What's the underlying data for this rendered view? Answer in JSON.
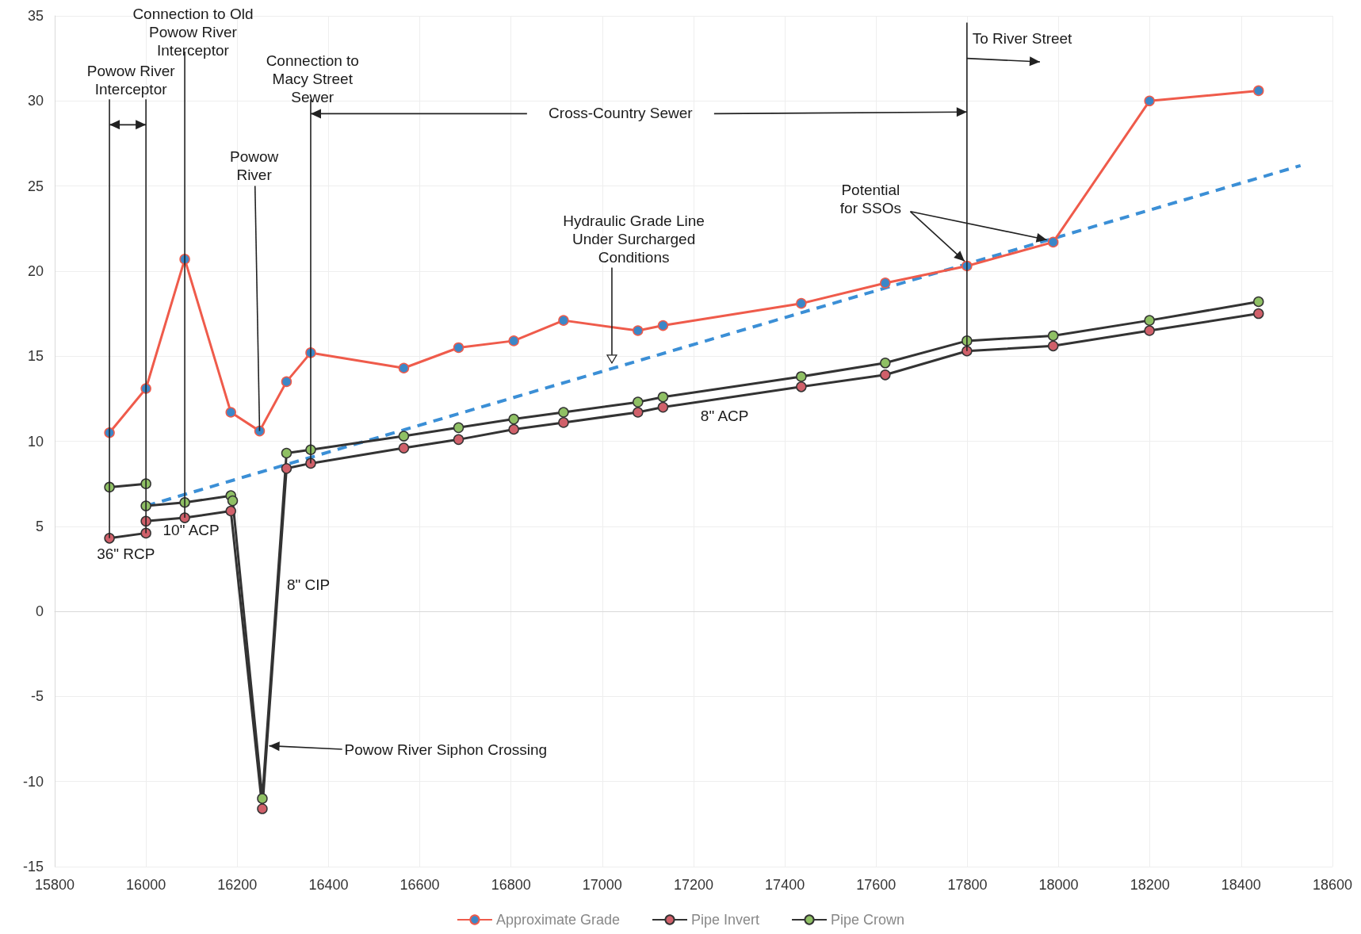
{
  "chart_data": {
    "type": "line",
    "xlim": [
      15800,
      18600
    ],
    "xticks": [
      15800,
      16000,
      16200,
      16400,
      16600,
      16800,
      17000,
      17200,
      17400,
      17600,
      17800,
      18000,
      18200,
      18400,
      18600
    ],
    "ylim": [
      -15,
      35
    ],
    "yticks": [
      -15,
      -10,
      -5,
      0,
      5,
      10,
      15,
      20,
      25,
      30,
      35
    ],
    "grid": true,
    "legend": "bottom",
    "marker": "circle",
    "series": [
      {
        "name": "Approximate Grade",
        "color": "#ef5b4b",
        "colors": [
          "#3b87c8",
          "#3b87c8",
          "#3b87c8",
          "#3b87c8",
          "#3b87c8",
          "#3b87c8",
          "#3b87c8",
          "#3b87c8",
          "#3b87c8",
          "#3b87c8",
          "#3b87c8",
          "#3b87c8",
          "#3b87c8",
          "#3b87c8",
          "#3b87c8",
          "#3b87c8",
          "#3b87c8",
          "#3b87c8",
          "#3b87c8"
        ],
        "x": [
          15920,
          16000,
          16085,
          16186,
          16249,
          16308,
          16361,
          16565,
          16685,
          16806,
          16915,
          17078,
          17133,
          17436,
          17620,
          17799,
          17988,
          18199,
          18438
        ],
        "values": [
          10.5,
          13.1,
          20.7,
          11.7,
          10.6,
          13.5,
          15.2,
          14.3,
          15.5,
          15.9,
          17.1,
          16.5,
          16.8,
          18.1,
          19.3,
          20.3,
          21.7,
          30.0,
          30.6
        ]
      },
      {
        "name": "Pipe Invert",
        "color": "#333333",
        "colors": [
          "#d0606a",
          "#d0606a",
          "#d0606a",
          "#d0606a",
          "#d0606a",
          "#d0606a",
          "#d0606a",
          "#d0606a",
          "#d0606a",
          "#d0606a",
          "#d0606a",
          "#d0606a",
          "#d0606a",
          "#d0606a",
          "#d0606a",
          "#d0606a",
          "#d0606a",
          "#d0606a"
        ],
        "x": [
          16000,
          16085,
          16186,
          16255,
          16308,
          16361,
          16565,
          16685,
          16806,
          16915,
          17078,
          17133,
          17436,
          17620,
          17799,
          17988,
          18199,
          18438
        ],
        "values": [
          5.3,
          5.5,
          5.9,
          -11.6,
          8.4,
          8.7,
          9.6,
          10.1,
          10.7,
          11.1,
          11.7,
          12.0,
          13.2,
          13.9,
          15.3,
          15.6,
          16.5,
          17.5
        ]
      },
      {
        "name": "Pipe Crown",
        "color": "#333333",
        "colors": [
          "#8fc064",
          "#8fc064",
          "#8fc064",
          "#8fc064",
          "#8fc064",
          "#8fc064",
          "#8fc064",
          "#8fc064",
          "#8fc064",
          "#8fc064",
          "#8fc064",
          "#8fc064",
          "#8fc064",
          "#8fc064",
          "#8fc064",
          "#8fc064",
          "#8fc064",
          "#8fc064",
          "#8fc064"
        ],
        "x": [
          16000,
          16085,
          16186,
          16190,
          16255,
          16308,
          16361,
          16565,
          16685,
          16806,
          16915,
          17078,
          17133,
          17436,
          17620,
          17799,
          17988,
          18199,
          18438
        ],
        "values": [
          6.2,
          6.4,
          6.8,
          6.5,
          -11.0,
          9.3,
          9.5,
          10.3,
          10.8,
          11.3,
          11.7,
          12.3,
          12.6,
          13.8,
          14.6,
          15.9,
          16.2,
          17.1,
          18.2
        ]
      },
      {
        "color": "#3b8fd6",
        "line_style": "dashed",
        "marker": "none",
        "x": [
          16000,
          18530
        ],
        "values": [
          6.2,
          26.2
        ]
      },
      {
        "color": "#333333",
        "colors": [
          "#d0606a",
          "#d0606a"
        ],
        "x": [
          15920,
          16000
        ],
        "values": [
          4.3,
          4.6
        ]
      },
      {
        "color": "#333333",
        "colors": [
          "#8fc064",
          "#8fc064"
        ],
        "x": [
          15920,
          16000
        ],
        "values": [
          7.3,
          7.5
        ]
      }
    ],
    "annotations": [
      {
        "text": "Connection to Old Powow River Interceptor",
        "x": 16085,
        "y": 5.5
      },
      {
        "text": "Powow River Interceptor",
        "x": 15920,
        "y": 4.3
      },
      {
        "text": "Powow River",
        "x": 16249,
        "y": 10.6
      },
      {
        "text": "Connection to Macy Street Sewer",
        "x": 16361,
        "y": 8.7
      },
      "Cross-Country Sewer",
      {
        "text": "To River Street",
        "x": 17799,
        "y": 15.3
      },
      {
        "text": "Potential for SSOs",
        "x": 17799,
        "y": 20.3
      },
      "Hydraulic Grade Line Under Surcharged Conditions",
      "8\" ACP",
      "36\" RCP",
      "10\" ACP",
      "8\" CIP",
      {
        "text": "Powow River Siphon Crossing",
        "x": 16270,
        "y": -7.9
      }
    ]
  }
}
